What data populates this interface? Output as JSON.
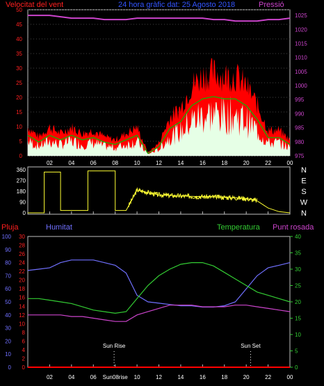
{
  "top_chart": {
    "title": "24 hora gràfic dat:  25 Agosto 2018",
    "left_label": "Velocitat del vent",
    "right_label": "Pressió",
    "left_ticks": [
      "0",
      "5",
      "10",
      "15",
      "20",
      "25",
      "30",
      "35",
      "40",
      "45",
      "50"
    ],
    "right_ticks": [
      "975",
      "980",
      "985",
      "990",
      "995",
      "1000",
      "1005",
      "1010",
      "1015",
      "1020",
      "1025"
    ],
    "x_ticks": [
      "02",
      "04",
      "06",
      "08",
      "10",
      "12",
      "14",
      "16",
      "18",
      "20",
      "22",
      "00"
    ]
  },
  "wind_dir_chart": {
    "left_ticks": [
      "0",
      "90",
      "180",
      "270",
      "360"
    ],
    "compass": [
      "N",
      "W",
      "S",
      "E",
      "N"
    ],
    "x_ticks": [
      "02",
      "04",
      "06",
      "08",
      "10",
      "12",
      "14",
      "16",
      "18",
      "20",
      "22",
      "00"
    ]
  },
  "bottom_chart": {
    "labels": {
      "rain": "Pluja",
      "humidity": "Humitat",
      "temperature": "Temperatura",
      "dewpoint": "Punt rosada"
    },
    "humidity_ticks": [
      "0",
      "10",
      "20",
      "30",
      "40",
      "50",
      "60",
      "70",
      "80",
      "90",
      "100"
    ],
    "rain_ticks": [
      "0",
      "2",
      "4",
      "6",
      "8",
      "10",
      "12",
      "14",
      "16",
      "18",
      "20",
      "22",
      "24",
      "26",
      "28",
      "30"
    ],
    "temp_ticks": [
      "0",
      "5",
      "10",
      "15",
      "20",
      "25",
      "30",
      "35",
      "40"
    ],
    "x_ticks": [
      "02",
      "04",
      "06",
      "Sun08rise",
      "10",
      "12",
      "14",
      "16",
      "18",
      "20",
      "22",
      "00"
    ],
    "sun_rise_label": "Sun Rise",
    "sun_set_label": "Sun Set"
  },
  "colors": {
    "wind_gust": "#ff0000",
    "wind_avg": "#e6ffe6",
    "wind_avg_line": "#00c000",
    "pressure": "#cc44cc",
    "wind_dir": "#ffff33",
    "humidity": "#7070ff",
    "temperature": "#33cc33",
    "dewpoint": "#cc44cc",
    "rain": "#ff0000"
  },
  "chart_data": [
    {
      "type": "line",
      "ylim": [
        0,
        50
      ],
      "y2lim": [
        975,
        1027
      ],
      "x_hours": [
        0,
        1,
        2,
        3,
        4,
        5,
        6,
        7,
        8,
        9,
        10,
        11,
        12,
        13,
        14,
        15,
        16,
        17,
        18,
        19,
        20,
        21,
        22,
        23,
        24
      ],
      "series": [
        {
          "name": "Velocitat del vent",
          "axis": "left",
          "values": [
            9,
            6,
            9,
            7,
            9,
            7,
            8,
            6,
            5,
            7,
            9,
            1,
            4,
            12,
            15,
            22,
            25,
            26,
            25,
            25,
            22,
            16,
            8,
            8,
            5
          ]
        },
        {
          "name": "Pressió",
          "axis": "right",
          "values": [
            1025,
            1025,
            1025,
            1024.5,
            1024,
            1024,
            1024,
            1023.5,
            1023.5,
            1023.5,
            1024,
            1024,
            1024,
            1024,
            1024,
            1024,
            1024,
            1023.5,
            1023.5,
            1023,
            1023,
            1023,
            1023.5,
            1023.5,
            1024
          ]
        }
      ]
    },
    {
      "type": "line",
      "ylim": [
        0,
        360
      ],
      "x_hours": [
        0,
        0.4,
        0.9,
        1.5,
        2.2,
        3,
        4,
        5,
        5.5,
        6,
        7,
        8,
        8.5,
        9,
        10,
        12,
        14,
        16,
        18,
        20,
        21,
        22,
        23,
        24
      ],
      "series": [
        {
          "name": "",
          "values": [
            0,
            0,
            0,
            340,
            340,
            20,
            20,
            20,
            350,
            350,
            350,
            20,
            20,
            20,
            190,
            150,
            140,
            135,
            130,
            120,
            100,
            40,
            10,
            0
          ]
        }
      ]
    },
    {
      "type": "line",
      "x_hours": [
        0,
        1,
        2,
        3,
        4,
        5,
        6,
        7,
        8,
        9,
        10,
        11,
        12,
        13,
        14,
        15,
        16,
        17,
        18,
        19,
        20,
        21,
        22,
        23,
        24
      ],
      "series": [
        {
          "name": "Humitat",
          "axis": "humidity",
          "ylim": [
            0,
            100
          ],
          "values": [
            74,
            75,
            76,
            80,
            82,
            82,
            82,
            80,
            78,
            72,
            55,
            50,
            49,
            48,
            47,
            47,
            46,
            46,
            47,
            50,
            60,
            70,
            76,
            78,
            80
          ]
        },
        {
          "name": "Temperatura",
          "axis": "temp",
          "ylim": [
            0,
            40
          ],
          "values": [
            21,
            21,
            20.5,
            20,
            19.5,
            18.5,
            17.5,
            17,
            16.5,
            17,
            21,
            25,
            28,
            30,
            31.5,
            32,
            32,
            31,
            29,
            27,
            25,
            23,
            22,
            21,
            20
          ]
        },
        {
          "name": "Punt rosada",
          "axis": "temp",
          "ylim": [
            0,
            40
          ],
          "values": [
            16,
            16,
            16,
            16,
            15.5,
            15.5,
            15,
            14.5,
            14,
            14,
            16,
            17,
            18,
            19,
            19,
            19,
            18.5,
            18.5,
            18.5,
            19,
            19,
            18.5,
            18,
            17.5,
            17
          ]
        },
        {
          "name": "Pluja",
          "axis": "rain",
          "ylim": [
            0,
            30
          ],
          "values": [
            0,
            0,
            0,
            0,
            0,
            0,
            0,
            0,
            0,
            0,
            0,
            0,
            0,
            0,
            0,
            0,
            0,
            0,
            0,
            0,
            0,
            0,
            0,
            0,
            0
          ]
        }
      ],
      "sun_rise_hour": 7.9,
      "sun_set_hour": 20.4
    }
  ]
}
